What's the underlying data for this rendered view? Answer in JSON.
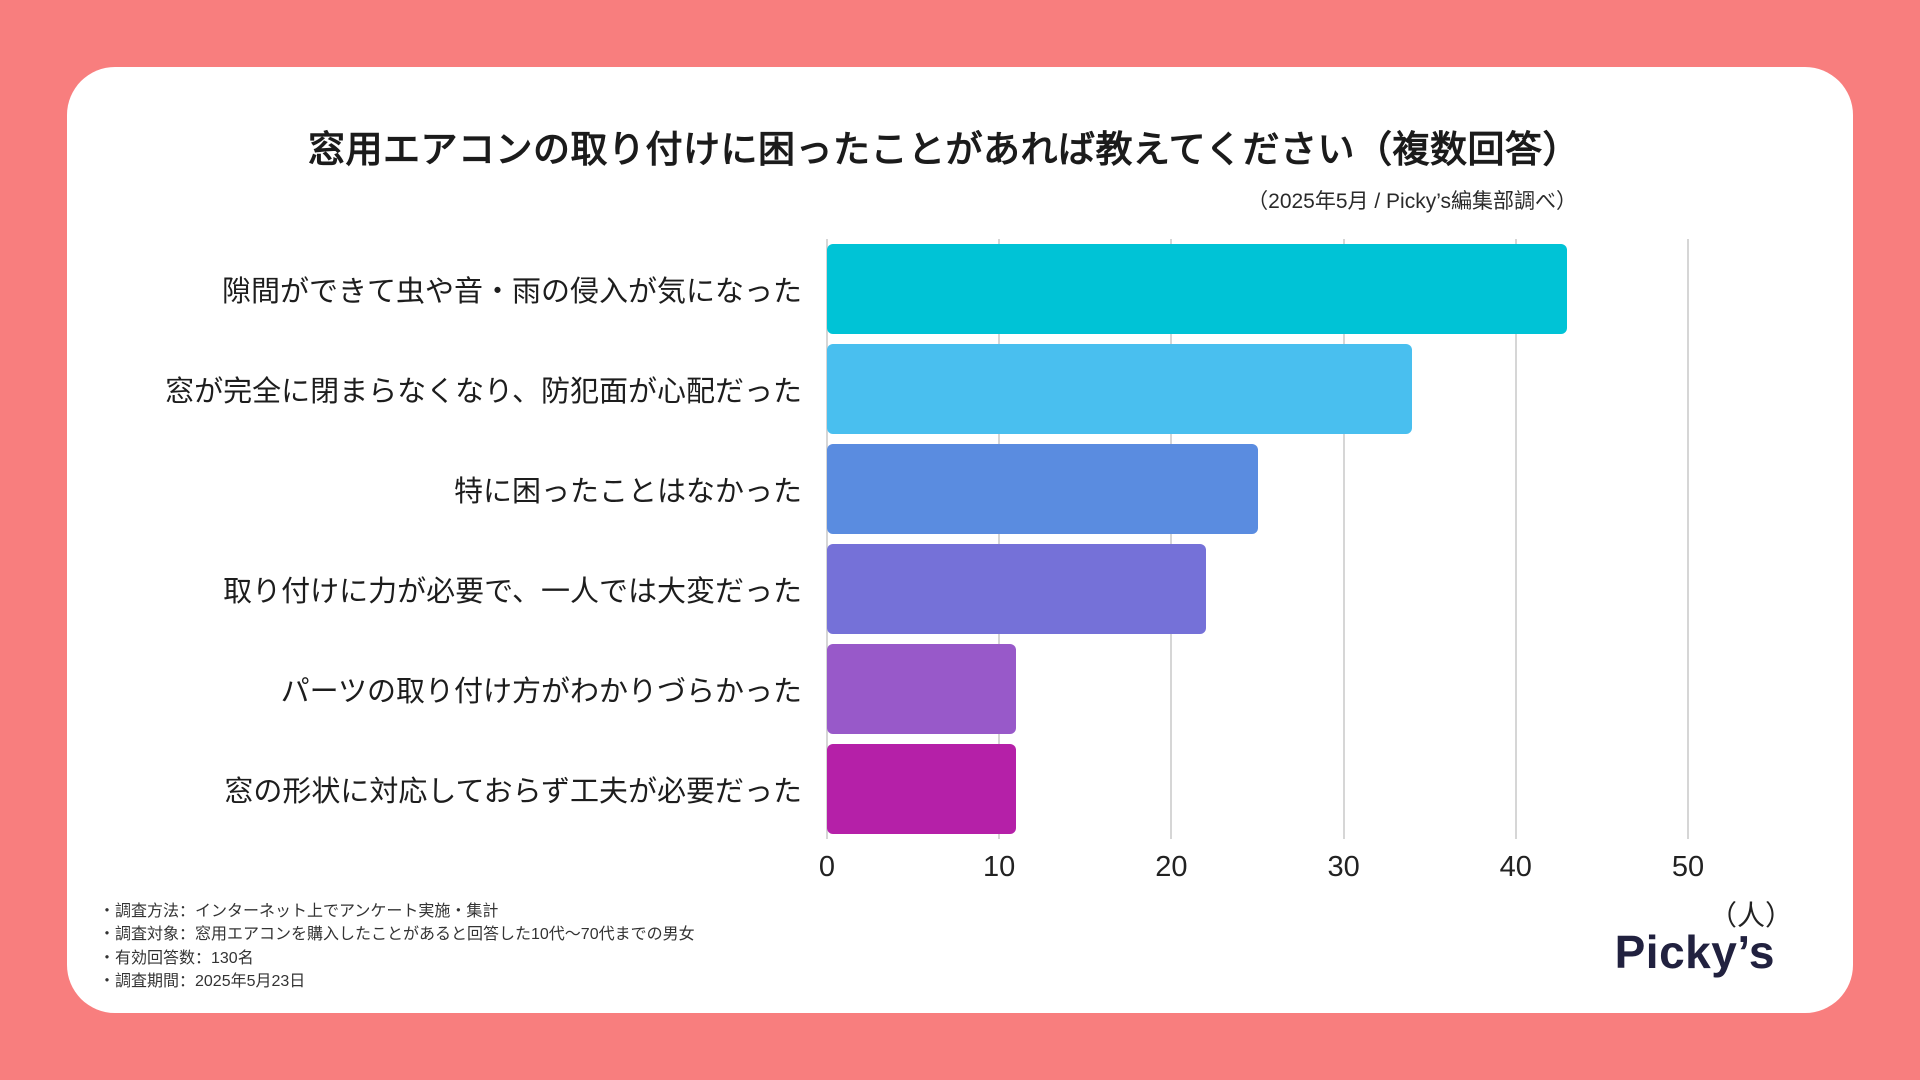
{
  "page": {
    "background_color": "#F87E7E",
    "card_color": "#FFFFFF"
  },
  "header": {
    "title": "窓用エアコンの取り付けに困ったことがあれば教えてください（複数回答）",
    "subtitle": "（2025年5月 / Picky’s編集部調べ）"
  },
  "chart_data": {
    "type": "bar",
    "orientation": "horizontal",
    "title": "窓用エアコンの取り付けに困ったことがあれば教えてください（複数回答）",
    "categories": [
      "隙間ができて虫や音・雨の侵入が気になった",
      "窓が完全に閉まらなくなり、防犯面が心配だった",
      "特に困ったことはなかった",
      "取り付けに力が必要で、一人では大変だった",
      "パーツの取り付け方がわかりづらかった",
      "窓の形状に対応しておらず工夫が必要だった"
    ],
    "values": [
      43,
      34,
      25,
      22,
      11,
      11
    ],
    "bar_colors": [
      "#00C3D6",
      "#49BFEF",
      "#5A8CE0",
      "#7571D8",
      "#9859C9",
      "#B520A8"
    ],
    "xlim": [
      0,
      50
    ],
    "x_ticks": [
      0,
      10,
      20,
      30,
      40,
      50
    ],
    "x_unit": "（人）",
    "grid": true,
    "grid_color": "#D6D6D6",
    "legend_position": "none"
  },
  "footer": {
    "notes": [
      "・調査方法：インターネット上でアンケート実施・集計",
      "・調査対象：窓用エアコンを購入したことがあると回答した10代〜70代までの男女",
      "・有効回答数：130名",
      "・調査期間：2025年5月23日"
    ],
    "logo_text": "Picky’s"
  }
}
